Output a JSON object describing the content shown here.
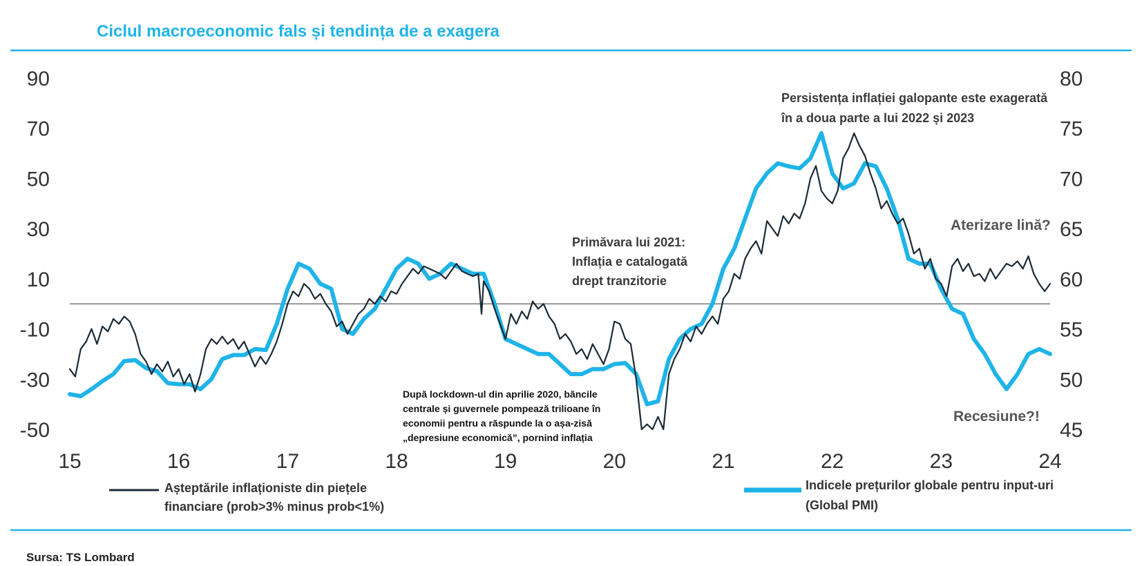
{
  "title": "Ciclul macroeconomic fals și tendința de a exagera",
  "source": "Sursa: TS Lombard",
  "colors": {
    "accent": "#1fb4e8",
    "dark_series": "#1b2a36",
    "zero_line": "#777777"
  },
  "annotations": {
    "persistence": [
      "Persistența inflației galopante este exagerată",
      "în a doua parte a lui 2022 și 2023"
    ],
    "spring2021": [
      "Primăvara lui 2021:",
      "Inflația e catalogată",
      "drept tranzitorie"
    ],
    "lockdown": [
      "După lockdown-ul din aprilie 2020, băncile",
      "centrale și guvernele pompează trilioane în",
      "economii pentru a răspunde la o așa-zisă",
      "„depresiune economică”, pornind inflația"
    ],
    "soft_landing": "Aterizare lină?",
    "recession": "Recesiune?!"
  },
  "chart_data": {
    "type": "line",
    "x_ticks": [
      "15",
      "16",
      "17",
      "18",
      "19",
      "20",
      "21",
      "22",
      "23",
      "24"
    ],
    "x_tick_values": [
      2015,
      2016,
      2017,
      2018,
      2019,
      2020,
      2021,
      2022,
      2023,
      2024
    ],
    "xlim": [
      2015,
      2024
    ],
    "y_left": {
      "ticks": [
        "90",
        "70",
        "50",
        "30",
        "10",
        "-10",
        "-30",
        "-50"
      ],
      "tick_values": [
        90,
        70,
        50,
        30,
        10,
        -10,
        -30,
        -50
      ],
      "lim": [
        -50,
        90
      ]
    },
    "y_right": {
      "ticks": [
        "80",
        "75",
        "70",
        "65",
        "60",
        "55",
        "50",
        "45"
      ],
      "tick_values": [
        80,
        75,
        70,
        65,
        60,
        55,
        50,
        45
      ],
      "lim": [
        45,
        80
      ]
    },
    "reference_line": 0,
    "series": [
      {
        "name": "Așteptările inflaționiste din piețele financiare (prob>3% minus prob<1%)",
        "axis": "left",
        "points": [
          [
            2015.0,
            -26
          ],
          [
            2015.05,
            -29
          ],
          [
            2015.1,
            -18
          ],
          [
            2015.15,
            -15
          ],
          [
            2015.2,
            -10
          ],
          [
            2015.25,
            -16
          ],
          [
            2015.3,
            -9
          ],
          [
            2015.35,
            -11
          ],
          [
            2015.4,
            -6
          ],
          [
            2015.45,
            -8
          ],
          [
            2015.5,
            -5
          ],
          [
            2015.55,
            -7
          ],
          [
            2015.6,
            -12
          ],
          [
            2015.65,
            -20
          ],
          [
            2015.7,
            -23
          ],
          [
            2015.75,
            -28
          ],
          [
            2015.8,
            -24
          ],
          [
            2015.85,
            -27
          ],
          [
            2015.9,
            -23
          ],
          [
            2015.95,
            -29
          ],
          [
            2016.0,
            -26
          ],
          [
            2016.05,
            -32
          ],
          [
            2016.1,
            -28
          ],
          [
            2016.15,
            -35
          ],
          [
            2016.2,
            -28
          ],
          [
            2016.25,
            -18
          ],
          [
            2016.3,
            -14
          ],
          [
            2016.35,
            -16
          ],
          [
            2016.4,
            -13
          ],
          [
            2016.45,
            -16
          ],
          [
            2016.5,
            -14
          ],
          [
            2016.55,
            -18
          ],
          [
            2016.6,
            -15
          ],
          [
            2016.65,
            -20
          ],
          [
            2016.7,
            -25
          ],
          [
            2016.75,
            -21
          ],
          [
            2016.8,
            -24
          ],
          [
            2016.85,
            -20
          ],
          [
            2016.9,
            -15
          ],
          [
            2016.95,
            -8
          ],
          [
            2017.0,
            0
          ],
          [
            2017.05,
            5
          ],
          [
            2017.1,
            3
          ],
          [
            2017.15,
            8
          ],
          [
            2017.2,
            6
          ],
          [
            2017.25,
            2
          ],
          [
            2017.3,
            4
          ],
          [
            2017.35,
            0
          ],
          [
            2017.4,
            -3
          ],
          [
            2017.45,
            -9
          ],
          [
            2017.5,
            -7
          ],
          [
            2017.55,
            -12
          ],
          [
            2017.6,
            -8
          ],
          [
            2017.65,
            -4
          ],
          [
            2017.7,
            -2
          ],
          [
            2017.75,
            2
          ],
          [
            2017.8,
            0
          ],
          [
            2017.85,
            3
          ],
          [
            2017.9,
            1
          ],
          [
            2017.95,
            5
          ],
          [
            2018.0,
            4
          ],
          [
            2018.05,
            8
          ],
          [
            2018.1,
            11
          ],
          [
            2018.15,
            14
          ],
          [
            2018.2,
            12
          ],
          [
            2018.25,
            15
          ],
          [
            2018.3,
            14
          ],
          [
            2018.35,
            13
          ],
          [
            2018.4,
            12
          ],
          [
            2018.45,
            10
          ],
          [
            2018.5,
            13
          ],
          [
            2018.55,
            16
          ],
          [
            2018.6,
            13
          ],
          [
            2018.65,
            12
          ],
          [
            2018.7,
            11
          ],
          [
            2018.75,
            12
          ],
          [
            2018.78,
            -4
          ],
          [
            2018.8,
            9
          ],
          [
            2018.85,
            5
          ],
          [
            2018.9,
            -2
          ],
          [
            2018.95,
            -8
          ],
          [
            2019.0,
            -14
          ],
          [
            2019.05,
            -4
          ],
          [
            2019.1,
            -8
          ],
          [
            2019.15,
            -3
          ],
          [
            2019.2,
            -6
          ],
          [
            2019.25,
            1
          ],
          [
            2019.3,
            -2
          ],
          [
            2019.35,
            0
          ],
          [
            2019.4,
            -5
          ],
          [
            2019.45,
            -8
          ],
          [
            2019.5,
            -14
          ],
          [
            2019.55,
            -12
          ],
          [
            2019.6,
            -15
          ],
          [
            2019.65,
            -20
          ],
          [
            2019.7,
            -18
          ],
          [
            2019.75,
            -22
          ],
          [
            2019.8,
            -16
          ],
          [
            2019.85,
            -20
          ],
          [
            2019.9,
            -24
          ],
          [
            2019.95,
            -18
          ],
          [
            2020.0,
            -7
          ],
          [
            2020.05,
            -8
          ],
          [
            2020.1,
            -14
          ],
          [
            2020.15,
            -16
          ],
          [
            2020.2,
            -30
          ],
          [
            2020.25,
            -50
          ],
          [
            2020.3,
            -48
          ],
          [
            2020.35,
            -50
          ],
          [
            2020.4,
            -45
          ],
          [
            2020.45,
            -50
          ],
          [
            2020.5,
            -28
          ],
          [
            2020.55,
            -22
          ],
          [
            2020.6,
            -18
          ],
          [
            2020.65,
            -12
          ],
          [
            2020.7,
            -15
          ],
          [
            2020.75,
            -9
          ],
          [
            2020.8,
            -12
          ],
          [
            2020.85,
            -8
          ],
          [
            2020.9,
            -5
          ],
          [
            2020.95,
            -8
          ],
          [
            2021.0,
            2
          ],
          [
            2021.05,
            5
          ],
          [
            2021.1,
            12
          ],
          [
            2021.15,
            10
          ],
          [
            2021.2,
            18
          ],
          [
            2021.25,
            22
          ],
          [
            2021.3,
            25
          ],
          [
            2021.35,
            20
          ],
          [
            2021.4,
            33
          ],
          [
            2021.45,
            30
          ],
          [
            2021.5,
            27
          ],
          [
            2021.55,
            35
          ],
          [
            2021.6,
            32
          ],
          [
            2021.65,
            36
          ],
          [
            2021.7,
            34
          ],
          [
            2021.75,
            40
          ],
          [
            2021.8,
            50
          ],
          [
            2021.85,
            55
          ],
          [
            2021.9,
            45
          ],
          [
            2021.95,
            42
          ],
          [
            2022.0,
            40
          ],
          [
            2022.05,
            45
          ],
          [
            2022.1,
            58
          ],
          [
            2022.15,
            62
          ],
          [
            2022.2,
            68
          ],
          [
            2022.25,
            63
          ],
          [
            2022.3,
            59
          ],
          [
            2022.35,
            52
          ],
          [
            2022.4,
            46
          ],
          [
            2022.45,
            38
          ],
          [
            2022.5,
            41
          ],
          [
            2022.55,
            36
          ],
          [
            2022.6,
            32
          ],
          [
            2022.65,
            34
          ],
          [
            2022.7,
            28
          ],
          [
            2022.75,
            20
          ],
          [
            2022.8,
            22
          ],
          [
            2022.85,
            14
          ],
          [
            2022.9,
            18
          ],
          [
            2022.95,
            10
          ],
          [
            2023.0,
            8
          ],
          [
            2023.05,
            3
          ],
          [
            2023.1,
            15
          ],
          [
            2023.15,
            18
          ],
          [
            2023.2,
            13
          ],
          [
            2023.25,
            16
          ],
          [
            2023.3,
            11
          ],
          [
            2023.35,
            12
          ],
          [
            2023.4,
            9
          ],
          [
            2023.45,
            14
          ],
          [
            2023.5,
            10
          ],
          [
            2023.55,
            13
          ],
          [
            2023.6,
            16
          ],
          [
            2023.65,
            15
          ],
          [
            2023.7,
            17
          ],
          [
            2023.75,
            14
          ],
          [
            2023.8,
            19
          ],
          [
            2023.85,
            12
          ],
          [
            2023.9,
            8
          ],
          [
            2023.95,
            5
          ],
          [
            2024.0,
            8
          ]
        ]
      },
      {
        "name": "Indicele prețurilor globale pentru input-uri (Global PMI)",
        "axis": "right",
        "points": [
          [
            2015.0,
            48.5
          ],
          [
            2015.1,
            48.3
          ],
          [
            2015.2,
            49.0
          ],
          [
            2015.3,
            49.8
          ],
          [
            2015.4,
            50.5
          ],
          [
            2015.5,
            51.8
          ],
          [
            2015.6,
            51.9
          ],
          [
            2015.7,
            51.1
          ],
          [
            2015.8,
            50.8
          ],
          [
            2015.9,
            49.6
          ],
          [
            2016.0,
            49.5
          ],
          [
            2016.1,
            49.5
          ],
          [
            2016.2,
            49.0
          ],
          [
            2016.3,
            50.0
          ],
          [
            2016.4,
            52.0
          ],
          [
            2016.5,
            52.4
          ],
          [
            2016.6,
            52.4
          ],
          [
            2016.7,
            53.0
          ],
          [
            2016.8,
            52.9
          ],
          [
            2016.9,
            55.5
          ],
          [
            2017.0,
            59.0
          ],
          [
            2017.1,
            61.5
          ],
          [
            2017.2,
            61.0
          ],
          [
            2017.3,
            59.5
          ],
          [
            2017.4,
            59.0
          ],
          [
            2017.5,
            55.0
          ],
          [
            2017.6,
            54.5
          ],
          [
            2017.7,
            56.0
          ],
          [
            2017.8,
            57.0
          ],
          [
            2017.9,
            59.0
          ],
          [
            2018.0,
            61.0
          ],
          [
            2018.1,
            62.0
          ],
          [
            2018.2,
            61.5
          ],
          [
            2018.3,
            60.0
          ],
          [
            2018.4,
            60.5
          ],
          [
            2018.5,
            61.5
          ],
          [
            2018.6,
            61.0
          ],
          [
            2018.7,
            60.5
          ],
          [
            2018.8,
            60.5
          ],
          [
            2018.9,
            57.5
          ],
          [
            2019.0,
            54.0
          ],
          [
            2019.1,
            53.5
          ],
          [
            2019.2,
            53.0
          ],
          [
            2019.3,
            52.5
          ],
          [
            2019.4,
            52.5
          ],
          [
            2019.5,
            51.5
          ],
          [
            2019.6,
            50.5
          ],
          [
            2019.7,
            50.5
          ],
          [
            2019.8,
            51.0
          ],
          [
            2019.9,
            51.0
          ],
          [
            2020.0,
            51.5
          ],
          [
            2020.1,
            51.6
          ],
          [
            2020.2,
            50.5
          ],
          [
            2020.3,
            47.5
          ],
          [
            2020.4,
            47.8
          ],
          [
            2020.5,
            52.0
          ],
          [
            2020.6,
            54.0
          ],
          [
            2020.7,
            55.0
          ],
          [
            2020.8,
            55.5
          ],
          [
            2020.9,
            57.5
          ],
          [
            2021.0,
            61.0
          ],
          [
            2021.1,
            63.0
          ],
          [
            2021.2,
            66.0
          ],
          [
            2021.3,
            69.0
          ],
          [
            2021.4,
            70.5
          ],
          [
            2021.5,
            71.5
          ],
          [
            2021.6,
            71.2
          ],
          [
            2021.7,
            71.0
          ],
          [
            2021.8,
            72.0
          ],
          [
            2021.9,
            74.5
          ],
          [
            2022.0,
            70.5
          ],
          [
            2022.1,
            69.0
          ],
          [
            2022.2,
            69.5
          ],
          [
            2022.3,
            71.5
          ],
          [
            2022.4,
            71.2
          ],
          [
            2022.5,
            69.0
          ],
          [
            2022.6,
            66.0
          ],
          [
            2022.7,
            62.0
          ],
          [
            2022.8,
            61.5
          ],
          [
            2022.9,
            61.5
          ],
          [
            2023.0,
            59.0
          ],
          [
            2023.1,
            57.0
          ],
          [
            2023.2,
            56.5
          ],
          [
            2023.3,
            54.0
          ],
          [
            2023.4,
            52.5
          ],
          [
            2023.5,
            50.5
          ],
          [
            2023.6,
            49.0
          ],
          [
            2023.7,
            50.5
          ],
          [
            2023.8,
            52.5
          ],
          [
            2023.9,
            53.0
          ],
          [
            2024.0,
            52.5
          ]
        ]
      }
    ]
  }
}
